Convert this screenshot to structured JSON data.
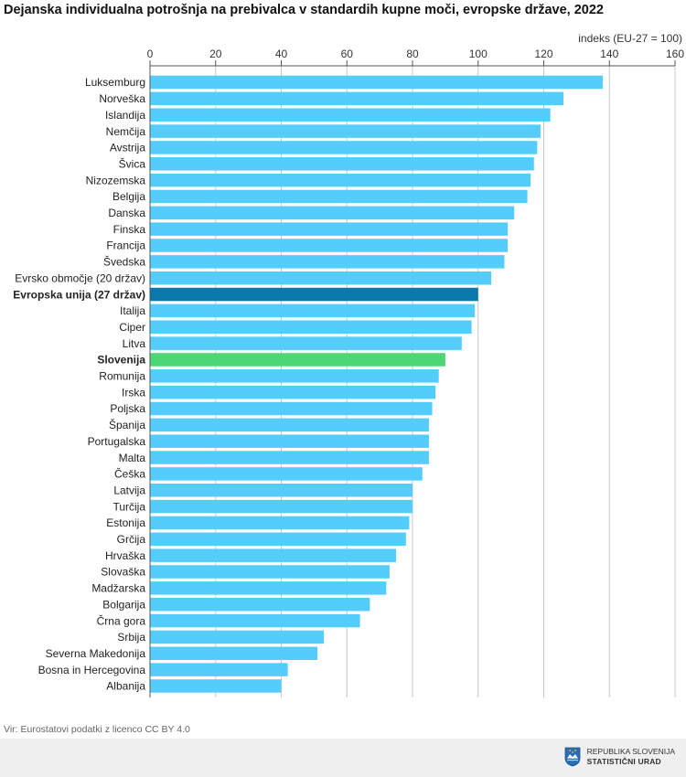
{
  "title": "Dejanska individualna potrošnja na prebivalca v standardih kupne moči, evropske države, 2022",
  "unit_label": "indeks (EU-27 = 100)",
  "source": "Vir: Eurostatovi podatki z licenco CC BY 4.0",
  "logo": {
    "line1": "REPUBLIKA SLOVENIJA",
    "line2": "STATISTIČNI URAD"
  },
  "colors": {
    "bar": "#55cdfc",
    "eu": "#0879a8",
    "slovenia": "#4cd675",
    "grid": "#c8c8c8",
    "axis": "#555555"
  },
  "chart_data": {
    "type": "bar",
    "orientation": "horizontal",
    "xlim": [
      0,
      160
    ],
    "xticks": [
      0,
      20,
      40,
      60,
      80,
      100,
      120,
      140,
      160
    ],
    "grid": true,
    "categories": [
      "Luksemburg",
      "Norveška",
      "Islandija",
      "Nemčija",
      "Avstrija",
      "Švica",
      "Nizozemska",
      "Belgija",
      "Danska",
      "Finska",
      "Francija",
      "Švedska",
      "Evrsko območje (20 držav)",
      "Evropska unija (27 držav)",
      "Italija",
      "Ciper",
      "Litva",
      "Slovenija",
      "Romunija",
      "Irska",
      "Poljska",
      "Španija",
      "Portugalska",
      "Malta",
      "Češka",
      "Latvija",
      "Turčija",
      "Estonija",
      "Grčija",
      "Hrvaška",
      "Slovaška",
      "Madžarska",
      "Bolgarija",
      "Črna gora",
      "Srbija",
      "Severna Makedonija",
      "Bosna in Hercegovina",
      "Albanija"
    ],
    "values": [
      138,
      126,
      122,
      119,
      118,
      117,
      116,
      115,
      111,
      109,
      109,
      108,
      104,
      100,
      99,
      98,
      95,
      90,
      88,
      87,
      86,
      85,
      85,
      85,
      83,
      80,
      80,
      79,
      78,
      75,
      73,
      72,
      67,
      64,
      53,
      51,
      42,
      40
    ],
    "highlight": {
      "Evropska unija (27 držav)": "eu",
      "Slovenija": "slovenia"
    },
    "bold_labels": [
      "Evropska unija (27 držav)",
      "Slovenija"
    ]
  }
}
